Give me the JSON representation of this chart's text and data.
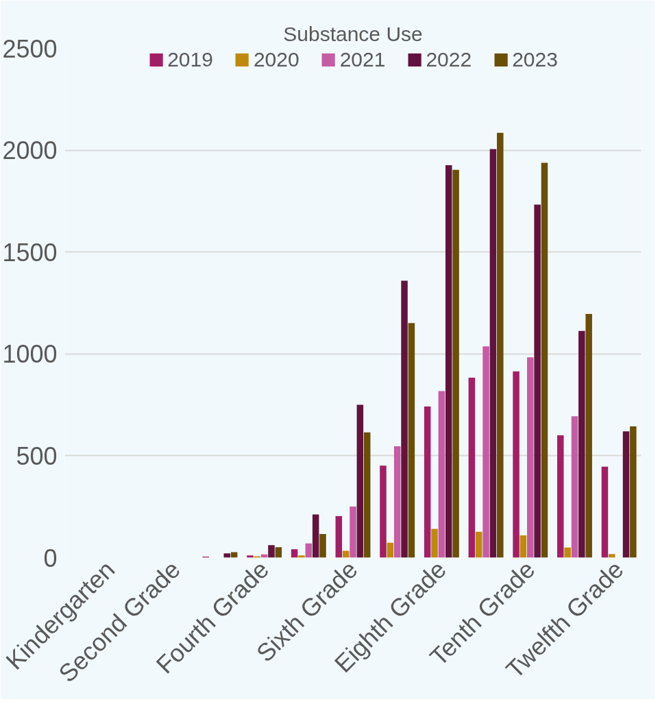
{
  "chart_data": {
    "type": "bar",
    "title": "Substance Use",
    "categories": [
      "Kindergarten",
      null,
      "Second Grade",
      null,
      "Fourth Grade",
      null,
      "Sixth Grade",
      null,
      "Eighth Grade",
      null,
      "Tenth Grade",
      null,
      "Twelfth Grade"
    ],
    "series": [
      {
        "name": "2019",
        "color": "#a21f66",
        "values": [
          0,
          0,
          0,
          5,
          11,
          41,
          204,
          452,
          742,
          883,
          914,
          601,
          447
        ]
      },
      {
        "name": "2020",
        "color": "#bf8a0c",
        "values": [
          0,
          0,
          0,
          0,
          7,
          11,
          34,
          73,
          141,
          127,
          109,
          50,
          18
        ]
      },
      {
        "name": "2021",
        "color": "#c55ca4",
        "values": [
          0,
          0,
          0,
          0,
          16,
          70,
          251,
          547,
          818,
          1037,
          983,
          694,
          null
        ]
      },
      {
        "name": "2022",
        "color": "#61133e",
        "values": [
          0,
          0,
          0,
          21,
          61,
          212,
          750,
          1359,
          1926,
          2005,
          1733,
          1113,
          620
        ]
      },
      {
        "name": "2023",
        "color": "#6b4f07",
        "values": [
          0,
          0,
          0,
          27,
          51,
          116,
          615,
          1152,
          1904,
          2085,
          1938,
          1196,
          644
        ]
      }
    ],
    "ylim": [
      0,
      2500
    ],
    "yticks": [
      0,
      500,
      1000,
      1500,
      2000,
      2500
    ],
    "grid": "y",
    "legend": "top"
  }
}
